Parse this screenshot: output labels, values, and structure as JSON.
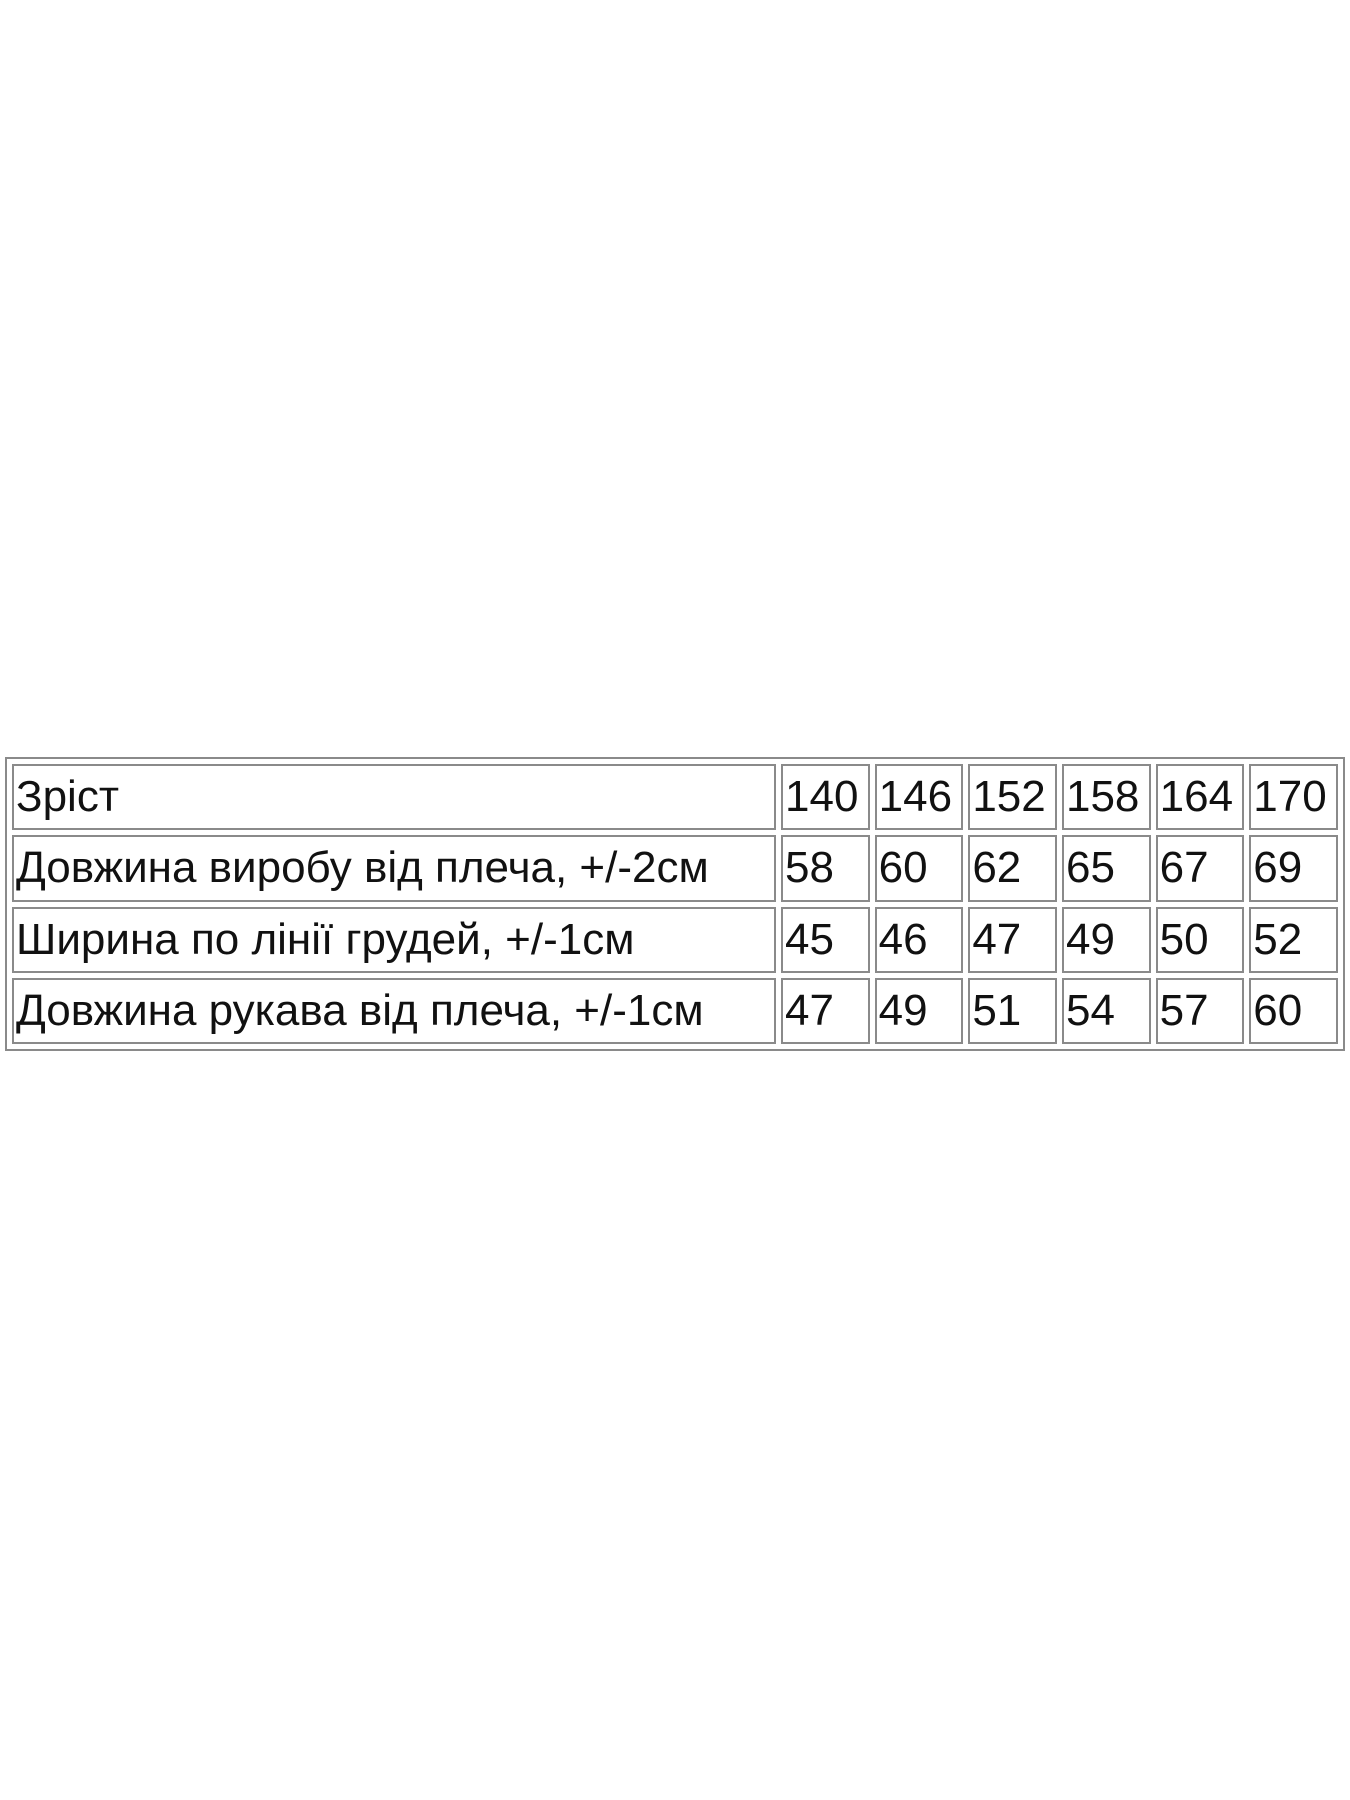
{
  "table": {
    "rows": [
      [
        "Зріст",
        140,
        146,
        152,
        158,
        164,
        170
      ],
      [
        "Довжина виробу від плеча, +/-2см",
        58,
        60,
        62,
        65,
        67,
        69
      ],
      [
        "Ширина по лінії грудей, +/-1см",
        45,
        46,
        47,
        49,
        50,
        52
      ],
      [
        "Довжина рукава від плеча, +/-1см",
        47,
        49,
        51,
        54,
        57,
        60
      ]
    ]
  }
}
